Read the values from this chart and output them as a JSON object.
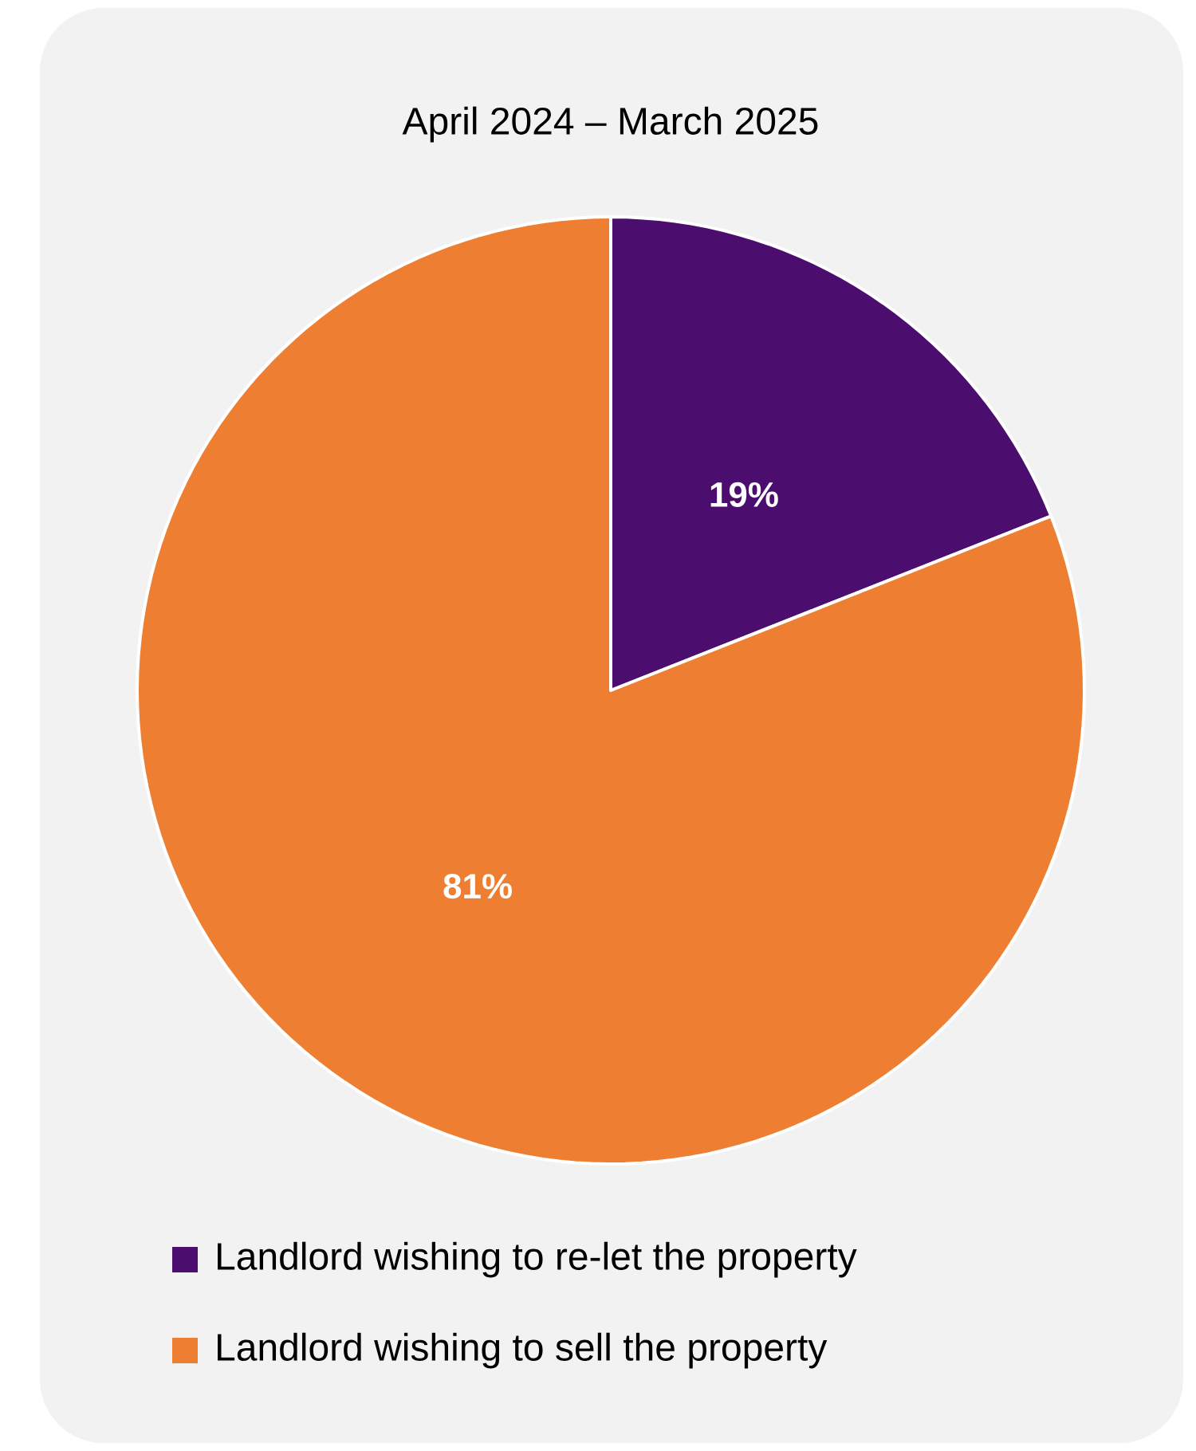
{
  "chart_data": {
    "type": "pie",
    "title": "April 2024 – March 2025",
    "categories": [
      "Landlord wishing to re-let the property",
      "Landlord wishing to sell the property"
    ],
    "values": [
      19,
      81
    ],
    "colors": [
      "#4b0e6e",
      "#ed7e32"
    ],
    "value_labels": [
      "19%",
      "81%"
    ],
    "legend": "bottom"
  }
}
